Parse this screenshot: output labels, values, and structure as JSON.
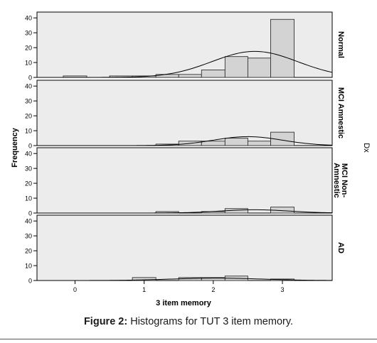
{
  "chart_data": {
    "type": "histogram",
    "ylabel": "Frequency",
    "xlabel": "3 item memory",
    "facet_label": "Dx",
    "x_ticks": [
      0,
      1,
      2,
      3
    ],
    "y_ticks": [
      0,
      10,
      20,
      30,
      40
    ],
    "xlim": [
      -0.55,
      3.72
    ],
    "ylim": [
      0,
      42
    ],
    "bin_width": 0.333,
    "normal_curve": true,
    "background_color": "#ececec",
    "bar_color": "#d3d3d3",
    "panels": [
      {
        "label": "Normal",
        "bins": [
          {
            "x0": -0.17,
            "x1": 0.17,
            "count": 1
          },
          {
            "x0": 0.5,
            "x1": 0.83,
            "count": 1
          },
          {
            "x0": 0.83,
            "x1": 1.17,
            "count": 1
          },
          {
            "x0": 1.17,
            "x1": 1.5,
            "count": 2
          },
          {
            "x0": 1.5,
            "x1": 1.83,
            "count": 2
          },
          {
            "x0": 1.83,
            "x1": 2.17,
            "count": 5
          },
          {
            "x0": 2.17,
            "x1": 2.5,
            "count": 14
          },
          {
            "x0": 2.5,
            "x1": 2.83,
            "count": 13
          },
          {
            "x0": 2.83,
            "x1": 3.17,
            "count": 39
          }
        ],
        "curve": {
          "mean": 2.6,
          "sd": 0.62,
          "peak": 17.5
        }
      },
      {
        "label": "MCI Amnestic",
        "bins": [
          {
            "x0": 1.17,
            "x1": 1.5,
            "count": 1
          },
          {
            "x0": 1.5,
            "x1": 1.83,
            "count": 3
          },
          {
            "x0": 1.83,
            "x1": 2.17,
            "count": 3
          },
          {
            "x0": 2.17,
            "x1": 2.5,
            "count": 5
          },
          {
            "x0": 2.5,
            "x1": 2.83,
            "count": 3
          },
          {
            "x0": 2.83,
            "x1": 3.17,
            "count": 9
          }
        ],
        "curve": {
          "mean": 2.5,
          "sd": 0.5,
          "peak": 6
        }
      },
      {
        "label": "MCI Non-Amnestic",
        "bins": [
          {
            "x0": 1.17,
            "x1": 1.5,
            "count": 1
          },
          {
            "x0": 1.83,
            "x1": 2.17,
            "count": 1
          },
          {
            "x0": 2.17,
            "x1": 2.5,
            "count": 3
          },
          {
            "x0": 2.83,
            "x1": 3.17,
            "count": 4
          }
        ],
        "curve": {
          "mean": 2.6,
          "sd": 0.5,
          "peak": 2.2
        }
      },
      {
        "label": "AD",
        "bins": [
          {
            "x0": 0.83,
            "x1": 1.17,
            "count": 2
          },
          {
            "x0": 1.5,
            "x1": 1.83,
            "count": 2
          },
          {
            "x0": 1.83,
            "x1": 2.17,
            "count": 2
          },
          {
            "x0": 2.17,
            "x1": 2.5,
            "count": 3
          },
          {
            "x0": 2.83,
            "x1": 3.17,
            "count": 1
          }
        ],
        "curve": {
          "mean": 2.05,
          "sd": 0.65,
          "peak": 1.6
        }
      }
    ]
  },
  "caption": {
    "label": "Figure 2:",
    "text": " Histograms for TUT 3 item memory."
  }
}
